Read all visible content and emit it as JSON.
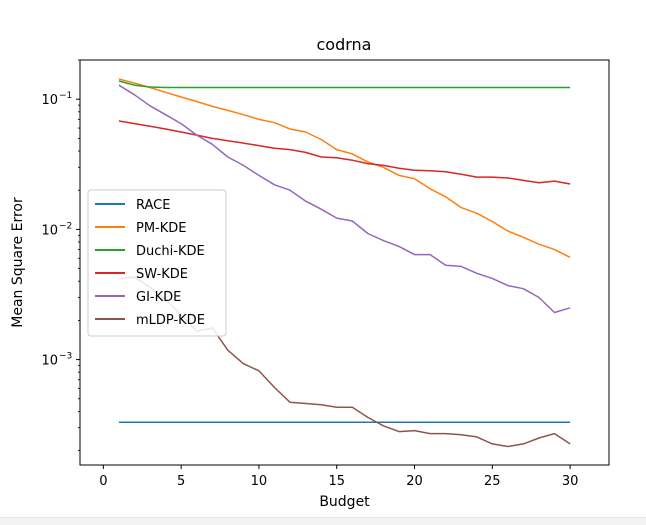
{
  "chart_data": {
    "type": "line",
    "title": "codrna",
    "xlabel": "Budget",
    "ylabel": "Mean Square Error",
    "xscale": "linear",
    "yscale": "log",
    "xlim": [
      -1.5,
      32.5
    ],
    "ylim": [
      0.000155,
      0.2
    ],
    "xticks": [
      0,
      5,
      10,
      15,
      20,
      25,
      30
    ],
    "yticks": [
      {
        "value": 0.001,
        "base": "10",
        "exp": "−3"
      },
      {
        "value": 0.01,
        "base": "10",
        "exp": "−2"
      },
      {
        "value": 0.1,
        "base": "10",
        "exp": "−1"
      }
    ],
    "grid": false,
    "legend_position": "center-left",
    "x": [
      1,
      2,
      3,
      4,
      5,
      6,
      7,
      8,
      9,
      10,
      11,
      12,
      13,
      14,
      15,
      16,
      17,
      18,
      19,
      20,
      21,
      22,
      23,
      24,
      25,
      26,
      27,
      28,
      29,
      30
    ],
    "series": [
      {
        "name": "RACE",
        "color": "#1f77b4",
        "values": [
          0.00033,
          0.00033,
          0.00033,
          0.00033,
          0.00033,
          0.00033,
          0.00033,
          0.00033,
          0.00033,
          0.00033,
          0.00033,
          0.00033,
          0.00033,
          0.00033,
          0.00033,
          0.00033,
          0.00033,
          0.00033,
          0.00033,
          0.00033,
          0.00033,
          0.00033,
          0.00033,
          0.00033,
          0.00033,
          0.00033,
          0.00033,
          0.00033,
          0.00033,
          0.00033
        ]
      },
      {
        "name": "PM-KDE",
        "color": "#ff7f0e",
        "values": [
          0.143,
          0.133,
          0.123,
          0.113,
          0.104,
          0.096,
          0.088,
          0.082,
          0.076,
          0.07,
          0.066,
          0.059,
          0.056,
          0.049,
          0.041,
          0.038,
          0.033,
          0.03,
          0.026,
          0.0245,
          0.0205,
          0.0178,
          0.0147,
          0.0133,
          0.0115,
          0.0097,
          0.0087,
          0.0077,
          0.007,
          0.0061
        ]
      },
      {
        "name": "Duchi-KDE",
        "color": "#2ca02c",
        "values": [
          0.138,
          0.128,
          0.124,
          0.123,
          0.123,
          0.123,
          0.123,
          0.123,
          0.123,
          0.123,
          0.123,
          0.123,
          0.123,
          0.123,
          0.123,
          0.123,
          0.123,
          0.123,
          0.123,
          0.123,
          0.123,
          0.123,
          0.123,
          0.123,
          0.123,
          0.123,
          0.123,
          0.123,
          0.123,
          0.123
        ]
      },
      {
        "name": "SW-KDE",
        "color": "#d62728",
        "values": [
          0.068,
          0.065,
          0.062,
          0.059,
          0.056,
          0.053,
          0.05,
          0.048,
          0.046,
          0.044,
          0.042,
          0.041,
          0.039,
          0.036,
          0.0355,
          0.034,
          0.032,
          0.031,
          0.0295,
          0.0285,
          0.0282,
          0.0277,
          0.0265,
          0.0252,
          0.0252,
          0.0248,
          0.0238,
          0.0228,
          0.0235,
          0.0223
        ]
      },
      {
        "name": "GI-KDE",
        "color": "#9467bd",
        "values": [
          0.128,
          0.108,
          0.089,
          0.076,
          0.065,
          0.053,
          0.045,
          0.036,
          0.031,
          0.026,
          0.022,
          0.02,
          0.0165,
          0.0143,
          0.0122,
          0.0116,
          0.0093,
          0.0082,
          0.0074,
          0.0064,
          0.0064,
          0.0053,
          0.0052,
          0.0046,
          0.0042,
          0.0037,
          0.0035,
          0.003,
          0.0023,
          0.0025
        ]
      },
      {
        "name": "mLDP-KDE",
        "color": "#8c564b",
        "values": [
          0.0042,
          0.0043,
          0.0036,
          0.0029,
          0.0022,
          0.00165,
          0.00175,
          0.00118,
          0.00093,
          0.00082,
          0.00061,
          0.00047,
          0.00046,
          0.00045,
          0.00043,
          0.00043,
          0.00036,
          0.00031,
          0.00028,
          0.000285,
          0.00027,
          0.00027,
          0.000265,
          0.000255,
          0.000225,
          0.000215,
          0.000225,
          0.00025,
          0.00027,
          0.000225
        ]
      }
    ]
  }
}
